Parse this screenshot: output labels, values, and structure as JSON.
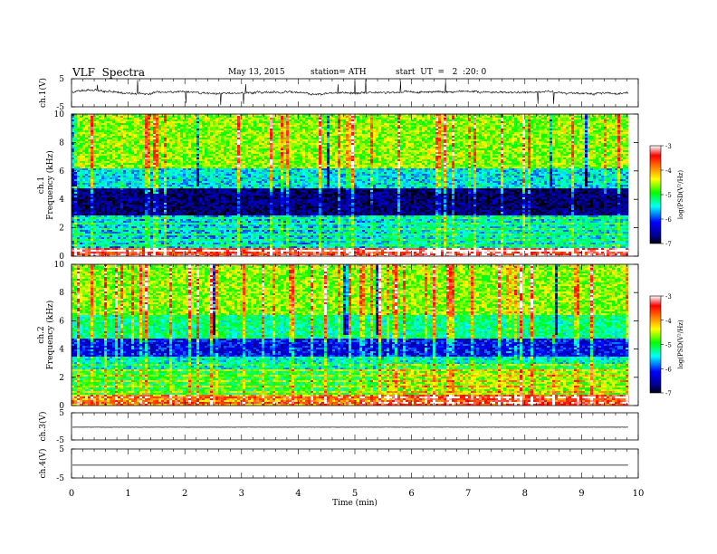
{
  "header": {
    "title": "VLF  Spectra",
    "date": "May 13, 2015",
    "station": "station= ATH",
    "start_ut": "start  UT  =   2  :20: 0"
  },
  "chart_data": [
    {
      "type": "line",
      "panel": "ch1-waveform",
      "ylabel": "ch.1(V)",
      "y_ticks": [
        "5",
        "-5"
      ],
      "ylim": [
        -5,
        5
      ],
      "x_range": [
        0,
        9.83
      ],
      "baseline": 0.3,
      "noise_amplitude": 0.6,
      "spike_max": 5
    },
    {
      "type": "heatmap",
      "panel": "ch1-spectrogram",
      "ylabel": "ch.1\nFrequency  (kHz)",
      "y_ticks": [
        "0",
        "2",
        "4",
        "6",
        "8",
        "10"
      ],
      "ylim": [
        0,
        10
      ],
      "x_range": [
        0,
        9.83
      ],
      "colorbar": {
        "label": "log(PSD(V²/Hz)",
        "ticks": [
          "-3",
          "-4",
          "-5",
          "-6",
          "-7"
        ],
        "range": [
          -7,
          -3
        ],
        "colors": [
          "#000000",
          "#0000ff",
          "#00ffff",
          "#00ff00",
          "#ffff00",
          "#ff8000",
          "#ff0000",
          "#ffffff"
        ]
      },
      "bands_khz": [
        {
          "from": 0,
          "to": 0.6,
          "level": -3.5
        },
        {
          "from": 0.6,
          "to": 2.9,
          "level": -5.6
        },
        {
          "from": 2.9,
          "to": 4.8,
          "level": -6.7
        },
        {
          "from": 4.8,
          "to": 6.2,
          "level": -5.5
        },
        {
          "from": 6.2,
          "to": 10,
          "level": -4.6
        }
      ],
      "transition_min": 5.5
    },
    {
      "type": "heatmap",
      "panel": "ch2-spectrogram",
      "ylabel": "ch.2\nFrequency  (kHz)",
      "y_ticks": [
        "0",
        "2",
        "4",
        "6",
        "8",
        "10"
      ],
      "ylim": [
        0,
        10
      ],
      "x_range": [
        0,
        9.83
      ],
      "colorbar": {
        "label": "log(PSD(V²/Hz)",
        "ticks": [
          "-3",
          "-4",
          "-5",
          "-6",
          "-7"
        ],
        "range": [
          -7,
          -3
        ]
      },
      "bands_khz": [
        {
          "from": 0,
          "to": 0.8,
          "level": -4.0
        },
        {
          "from": 0.8,
          "to": 2.6,
          "level": -5.0
        },
        {
          "from": 2.6,
          "to": 3.5,
          "level": -5.4
        },
        {
          "from": 3.5,
          "to": 4.8,
          "level": -6.2
        },
        {
          "from": 4.8,
          "to": 6.5,
          "level": -5.2
        },
        {
          "from": 6.5,
          "to": 10,
          "level": -4.6
        }
      ],
      "transition_min": 5.5
    },
    {
      "type": "line",
      "panel": "ch3-waveform",
      "ylabel": "ch.3(V)",
      "y_ticks": [
        "5",
        "-5"
      ],
      "ylim": [
        -5,
        5
      ],
      "x_range": [
        0,
        9.83
      ],
      "baseline": -0.3,
      "noise_amplitude": 0.08
    },
    {
      "type": "line",
      "panel": "ch4-waveform",
      "ylabel": "ch.4(V)",
      "y_ticks": [
        "5",
        "-5"
      ],
      "ylim": [
        -5,
        5
      ],
      "x_range": [
        0,
        9.83
      ],
      "baseline": -0.6,
      "noise_amplitude": 0.0
    }
  ],
  "x_axis": {
    "label": "Time  (min)",
    "ticks": [
      "0",
      "1",
      "2",
      "3",
      "4",
      "5",
      "6",
      "7",
      "8",
      "9",
      "10"
    ],
    "range": [
      0,
      10
    ]
  }
}
